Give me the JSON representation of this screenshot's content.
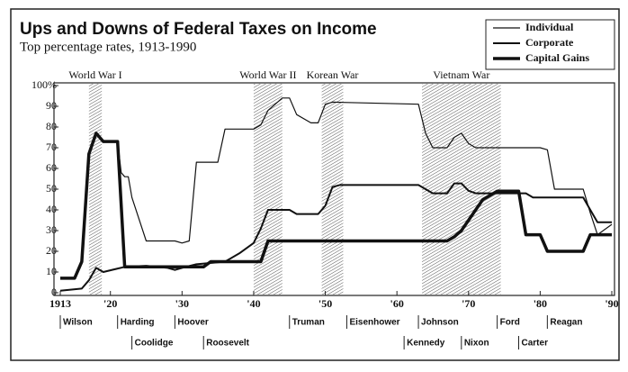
{
  "chart_data": {
    "type": "line",
    "title": "Ups and Downs of Federal Taxes on Income",
    "subtitle": "Top percentage rates, 1913-1990",
    "xlim": [
      1913,
      1990
    ],
    "xticks": [
      1913,
      {
        "value": 1920,
        "label": "'20"
      },
      {
        "value": 1930,
        "label": "'30"
      },
      {
        "value": 1940,
        "label": "'40"
      },
      {
        "value": 1950,
        "label": "'50"
      },
      {
        "value": 1960,
        "label": "'60"
      },
      {
        "value": 1970,
        "label": "'70"
      },
      {
        "value": 1980,
        "label": "'80"
      },
      {
        "value": 1990,
        "label": "'90"
      }
    ],
    "ylim": [
      0,
      100
    ],
    "yticks": [
      0,
      10,
      20,
      30,
      40,
      50,
      60,
      70,
      80,
      90,
      {
        "value": 100,
        "label": "100%"
      }
    ],
    "legend": "upper right",
    "series": [
      {
        "name": "Individual",
        "color": "#111111",
        "line_width": 1.2,
        "x": [
          1913,
          1915,
          1916,
          1917,
          1918,
          1919,
          1921,
          1921.5,
          1922,
          1922.5,
          1923,
          1925,
          1929,
          1930,
          1931,
          1932,
          1935,
          1936,
          1940,
          1941,
          1942,
          1944,
          1945,
          1946,
          1948,
          1949,
          1950,
          1951,
          1963,
          1964,
          1965,
          1967,
          1968,
          1969,
          1970,
          1971,
          1980,
          1981,
          1982,
          1986,
          1987,
          1988,
          1990
        ],
        "values": [
          7,
          7,
          15,
          67,
          77,
          73,
          73,
          58,
          56,
          56,
          46,
          25,
          25,
          24,
          25,
          63,
          63,
          79,
          79,
          81,
          88,
          94,
          94,
          86,
          82,
          82,
          91,
          92,
          91,
          77,
          70,
          70,
          75,
          77,
          72,
          70,
          70,
          69,
          50,
          50,
          38.5,
          28,
          33
        ]
      },
      {
        "name": "Corporate",
        "color": "#111111",
        "line_width": 2,
        "x": [
          1913,
          1916,
          1917,
          1918,
          1919,
          1922,
          1925,
          1928,
          1929,
          1930,
          1932,
          1936,
          1938,
          1940,
          1941,
          1942,
          1945,
          1946,
          1949,
          1950,
          1951,
          1952,
          1963,
          1964,
          1965,
          1967,
          1968,
          1969,
          1970,
          1971,
          1978,
          1979,
          1986,
          1987,
          1988,
          1990
        ],
        "values": [
          1,
          2,
          6,
          12,
          10,
          12.5,
          13,
          12,
          11,
          12,
          13.75,
          15,
          19,
          24,
          31,
          40,
          40,
          38,
          38,
          42,
          51,
          52,
          52,
          50,
          48,
          48,
          52.8,
          52.8,
          49.2,
          48,
          48,
          46,
          46,
          40,
          34,
          34
        ]
      },
      {
        "name": "Capital Gains",
        "color": "#111111",
        "line_width": 3.5,
        "x": [
          1913,
          1915,
          1916,
          1917,
          1918,
          1919,
          1921,
          1922,
          1933,
          1934,
          1941,
          1942,
          1967,
          1968,
          1969,
          1970,
          1971,
          1972,
          1973,
          1974,
          1977,
          1978,
          1980,
          1981,
          1986,
          1987,
          1990
        ],
        "values": [
          7,
          7,
          15,
          67,
          77,
          73,
          73,
          12.5,
          12.5,
          15,
          15,
          25,
          25,
          27,
          30,
          35,
          40,
          45,
          47,
          49,
          49,
          28,
          28,
          20,
          20,
          28,
          28
        ]
      }
    ],
    "shaded_periods": [
      {
        "label": "World War I",
        "start": 1917,
        "end": 1918.8
      },
      {
        "label": "World War II",
        "start": 1940,
        "end": 1944
      },
      {
        "label": "Korean War",
        "start": 1949.5,
        "end": 1952.5
      },
      {
        "label": "Vietnam War",
        "start": 1963.5,
        "end": 1974.5
      }
    ],
    "presidents": [
      {
        "name": "Wilson",
        "year": 1913
      },
      {
        "name": "Harding",
        "year": 1921
      },
      {
        "name": "Coolidge",
        "year": 1923
      },
      {
        "name": "Hoover",
        "year": 1929
      },
      {
        "name": "Roosevelt",
        "year": 1933
      },
      {
        "name": "Truman",
        "year": 1945
      },
      {
        "name": "Eisenhower",
        "year": 1953
      },
      {
        "name": "Kennedy",
        "year": 1961
      },
      {
        "name": "Johnson",
        "year": 1963
      },
      {
        "name": "Nixon",
        "year": 1969
      },
      {
        "name": "Ford",
        "year": 1974
      },
      {
        "name": "Carter",
        "year": 1977
      },
      {
        "name": "Reagan",
        "year": 1981
      }
    ]
  }
}
